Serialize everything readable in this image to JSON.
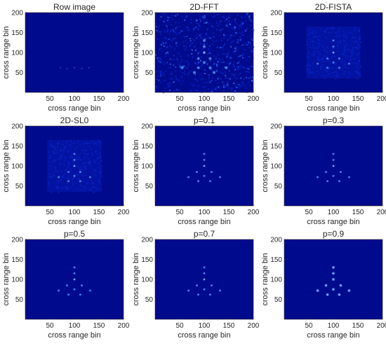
{
  "colors": {
    "background": "#000a8c",
    "speckle_dim": "#0a2ad6",
    "speckle_bright": "#3a78ff",
    "point": "#5aa0ff",
    "point_core": "#c8e4ff",
    "axis_text": "#262626"
  },
  "chart_data": [
    {
      "type": "heatmap",
      "title": "Row image",
      "xlabel": "cross range bin",
      "ylabel": "cross range bin",
      "xlim": [
        0,
        200
      ],
      "ylim": [
        0,
        200
      ],
      "xticks": [
        "50",
        "100",
        "150",
        "200"
      ],
      "yticks": [
        "50",
        "100",
        "150",
        "200"
      ],
      "style": "faint",
      "points": [
        [
          72,
          62
        ],
        [
          85,
          60
        ],
        [
          100,
          62
        ],
        [
          115,
          60
        ],
        [
          130,
          62
        ]
      ]
    },
    {
      "type": "heatmap",
      "title": "2D-FFT",
      "xlabel": "cross range bin",
      "ylabel": "cross range bin",
      "xlim": [
        0,
        200
      ],
      "ylim": [
        0,
        200
      ],
      "xticks": [
        "50",
        "100",
        "150",
        "200"
      ],
      "yticks": [
        "50",
        "100",
        "150",
        "200"
      ],
      "style": "noisy",
      "points": [
        [
          100,
          130
        ],
        [
          100,
          115
        ],
        [
          100,
          100
        ],
        [
          88,
          85
        ],
        [
          112,
          85
        ],
        [
          100,
          75
        ],
        [
          55,
          62
        ],
        [
          88,
          62
        ],
        [
          112,
          62
        ],
        [
          145,
          62
        ],
        [
          80,
          50
        ],
        [
          120,
          50
        ]
      ]
    },
    {
      "type": "heatmap",
      "title": "2D-FISTA",
      "xlabel": "cross range bin",
      "ylabel": "cross range bin",
      "xlim": [
        0,
        200
      ],
      "ylim": [
        0,
        200
      ],
      "xticks": [
        "50",
        "100",
        "150",
        "200"
      ],
      "yticks": [
        "50",
        "100",
        "150",
        "200"
      ],
      "style": "clutter",
      "points": [
        [
          100,
          130
        ],
        [
          100,
          115
        ],
        [
          100,
          100
        ],
        [
          88,
          85
        ],
        [
          112,
          85
        ],
        [
          100,
          75
        ],
        [
          68,
          72
        ],
        [
          88,
          62
        ],
        [
          112,
          62
        ],
        [
          132,
          72
        ]
      ]
    },
    {
      "type": "heatmap",
      "title": "2D-SL0",
      "xlabel": "cross range bin",
      "ylabel": "cross range bin",
      "xlim": [
        0,
        200
      ],
      "ylim": [
        0,
        200
      ],
      "xticks": [
        "50",
        "100",
        "150",
        "200"
      ],
      "yticks": [
        "50",
        "100",
        "150",
        "200"
      ],
      "style": "clutter",
      "points": [
        [
          100,
          130
        ],
        [
          100,
          115
        ],
        [
          100,
          100
        ],
        [
          88,
          85
        ],
        [
          112,
          85
        ],
        [
          100,
          75
        ],
        [
          68,
          72
        ],
        [
          88,
          62
        ],
        [
          112,
          62
        ],
        [
          132,
          72
        ]
      ]
    },
    {
      "type": "heatmap",
      "title": "p=0.1",
      "xlabel": "cross range bin",
      "ylabel": "cross range bin",
      "xlim": [
        0,
        200
      ],
      "ylim": [
        0,
        200
      ],
      "xticks": [
        "50",
        "100",
        "150",
        "200"
      ],
      "yticks": [
        "50",
        "100",
        "150",
        "200"
      ],
      "style": "clean",
      "points": [
        [
          100,
          130
        ],
        [
          100,
          115
        ],
        [
          100,
          100
        ],
        [
          85,
          85
        ],
        [
          115,
          85
        ],
        [
          100,
          75
        ],
        [
          68,
          72
        ],
        [
          88,
          62
        ],
        [
          112,
          62
        ],
        [
          132,
          72
        ]
      ]
    },
    {
      "type": "heatmap",
      "title": "p=0.3",
      "xlabel": "cross range bin",
      "ylabel": "cross range bin",
      "xlim": [
        0,
        200
      ],
      "ylim": [
        0,
        200
      ],
      "xticks": [
        "50",
        "100",
        "150",
        "200"
      ],
      "yticks": [
        "50",
        "100",
        "150",
        "200"
      ],
      "style": "clean",
      "points": [
        [
          100,
          130
        ],
        [
          100,
          115
        ],
        [
          100,
          100
        ],
        [
          85,
          85
        ],
        [
          115,
          85
        ],
        [
          100,
          75
        ],
        [
          68,
          72
        ],
        [
          88,
          62
        ],
        [
          112,
          62
        ],
        [
          132,
          72
        ]
      ]
    },
    {
      "type": "heatmap",
      "title": "p=0.5",
      "xlabel": "cross range bin",
      "ylabel": "cross range bin",
      "xlim": [
        0,
        200
      ],
      "ylim": [
        0,
        200
      ],
      "xticks": [
        "50",
        "100",
        "150",
        "200"
      ],
      "yticks": [
        "50",
        "100",
        "150",
        "200"
      ],
      "style": "clean",
      "points": [
        [
          100,
          130
        ],
        [
          100,
          115
        ],
        [
          100,
          100
        ],
        [
          85,
          85
        ],
        [
          115,
          85
        ],
        [
          100,
          75
        ],
        [
          68,
          72
        ],
        [
          88,
          62
        ],
        [
          112,
          62
        ],
        [
          132,
          72
        ]
      ]
    },
    {
      "type": "heatmap",
      "title": "p=0.7",
      "xlabel": "cross range bin",
      "ylabel": "cross range bin",
      "xlim": [
        0,
        200
      ],
      "ylim": [
        0,
        200
      ],
      "xticks": [
        "50",
        "100",
        "150",
        "200"
      ],
      "yticks": [
        "50",
        "100",
        "150",
        "200"
      ],
      "style": "clean",
      "points": [
        [
          100,
          130
        ],
        [
          100,
          115
        ],
        [
          100,
          100
        ],
        [
          85,
          85
        ],
        [
          115,
          85
        ],
        [
          100,
          75
        ],
        [
          68,
          72
        ],
        [
          88,
          62
        ],
        [
          112,
          62
        ],
        [
          132,
          72
        ]
      ]
    },
    {
      "type": "heatmap",
      "title": "p=0.9",
      "xlabel": "cross range bin",
      "ylabel": "cross range bin",
      "xlim": [
        0,
        200
      ],
      "ylim": [
        0,
        200
      ],
      "xticks": [
        "50",
        "100",
        "150",
        "200"
      ],
      "yticks": [
        "50",
        "100",
        "150",
        "200"
      ],
      "style": "bright",
      "points": [
        [
          100,
          130
        ],
        [
          100,
          115
        ],
        [
          100,
          100
        ],
        [
          85,
          85
        ],
        [
          115,
          85
        ],
        [
          100,
          75
        ],
        [
          68,
          72
        ],
        [
          88,
          62
        ],
        [
          112,
          62
        ],
        [
          132,
          72
        ]
      ]
    }
  ]
}
